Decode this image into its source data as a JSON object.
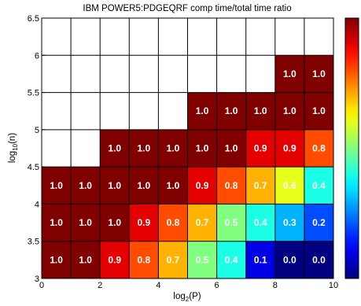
{
  "chart_data": {
    "type": "heatmap",
    "title": "IBM POWER5:PDGEQRF comp time/total time ratio",
    "xlabel_base": "log",
    "xlabel_sub": "2",
    "xlabel_rest": "(P)",
    "ylabel_base": "log",
    "ylabel_sub": "10",
    "ylabel_rest": "(n)",
    "xlim": [
      0,
      10
    ],
    "ylim": [
      3,
      6.5
    ],
    "x_ticks": [
      0,
      2,
      4,
      6,
      8,
      10
    ],
    "x_tick_labels": [
      "0",
      "2",
      "4",
      "6",
      "8",
      "10"
    ],
    "y_ticks": [
      3,
      3.5,
      4,
      4.5,
      5,
      5.5,
      6,
      6.5
    ],
    "y_tick_labels": [
      "3",
      "3.5",
      "4",
      "4.5",
      "5",
      "5.5",
      "6",
      "6.5"
    ],
    "x_edges": [
      0,
      1,
      2,
      3,
      4,
      5,
      6,
      7,
      8,
      9,
      10
    ],
    "y_edges": [
      3,
      3.5,
      4,
      4.5,
      5,
      5.5,
      6,
      6.5
    ],
    "colorbar": {
      "colormap": "jet",
      "range": [
        0,
        1
      ]
    },
    "values": [
      [
        1.0,
        1.0,
        0.9,
        0.8,
        0.7,
        0.5,
        0.4,
        0.1,
        0.0,
        0.0
      ],
      [
        1.0,
        1.0,
        1.0,
        0.9,
        0.8,
        0.7,
        0.5,
        0.4,
        0.3,
        0.2
      ],
      [
        1.0,
        1.0,
        1.0,
        1.0,
        1.0,
        0.9,
        0.8,
        0.7,
        0.6,
        0.4
      ],
      [
        null,
        null,
        1.0,
        1.0,
        1.0,
        1.0,
        1.0,
        0.9,
        0.9,
        0.8
      ],
      [
        null,
        null,
        null,
        null,
        null,
        1.0,
        1.0,
        1.0,
        1.0,
        1.0
      ],
      [
        null,
        null,
        null,
        null,
        null,
        null,
        null,
        null,
        1.0,
        1.0
      ],
      [
        null,
        null,
        null,
        null,
        null,
        null,
        null,
        null,
        null,
        null
      ]
    ],
    "grid": true
  }
}
